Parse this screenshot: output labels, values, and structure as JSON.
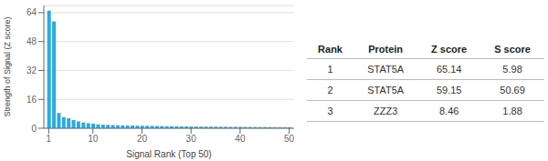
{
  "chart_data": {
    "type": "bar",
    "x_label": "Signal Rank (Top 50)",
    "y_label": "Strength of Signal (Z score)",
    "x": [
      1,
      2,
      3,
      4,
      5,
      6,
      7,
      8,
      9,
      10,
      11,
      12,
      13,
      14,
      15,
      16,
      17,
      18,
      19,
      20,
      21,
      22,
      23,
      24,
      25,
      26,
      27,
      28,
      29,
      30,
      31,
      32,
      33,
      34,
      35,
      36,
      37,
      38,
      39,
      40,
      41,
      42,
      43,
      44,
      45,
      46,
      47,
      48,
      49,
      50
    ],
    "values": [
      65.14,
      59.15,
      8.46,
      6.2,
      5.5,
      4.5,
      3.8,
      3.2,
      2.8,
      2.5,
      2.2,
      2.0,
      1.9,
      1.8,
      1.7,
      1.6,
      1.55,
      1.5,
      1.45,
      1.4,
      1.35,
      1.3,
      1.25,
      1.2,
      1.15,
      1.1,
      1.05,
      1.0,
      0.98,
      0.96,
      0.94,
      0.92,
      0.9,
      0.88,
      0.86,
      0.84,
      0.82,
      0.8,
      0.78,
      0.76,
      0.74,
      0.72,
      0.7,
      0.68,
      0.66,
      0.64,
      0.62,
      0.6,
      0.58,
      0.56
    ],
    "color": "#29abe2",
    "xlim": [
      0,
      51
    ],
    "xticks": [
      1,
      10,
      20,
      30,
      40,
      50
    ],
    "ylim": [
      0,
      68
    ],
    "yticks": [
      0,
      16,
      32,
      48,
      64
    ],
    "grid": true,
    "table": {
      "columns": [
        "Rank",
        "Protein",
        "Z score",
        "S score"
      ],
      "rows": [
        [
          "1",
          "STAT5A",
          "65.14",
          "5.98"
        ],
        [
          "2",
          "STAT5A",
          "59.15",
          "50.69"
        ],
        [
          "3",
          "ZZZ3",
          "8.46",
          "1.88"
        ]
      ]
    }
  }
}
